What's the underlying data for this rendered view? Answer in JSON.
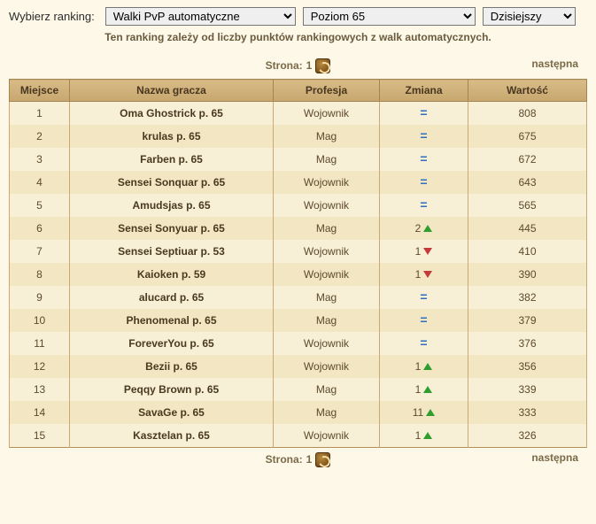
{
  "filters": {
    "label": "Wybierz ranking:",
    "ranking_selected": "Walki PvP automatyczne",
    "level_selected": "Poziom 65",
    "period_selected": "Dzisiejszy"
  },
  "subtitle": "Ten ranking zależy od liczby punktów rankingowych z walk automatycznych.",
  "pager": {
    "label": "Strona:",
    "current": "1",
    "next": "następna"
  },
  "columns": {
    "rank": "Miejsce",
    "name": "Nazwa gracza",
    "prof": "Profesja",
    "change": "Zmiana",
    "value": "Wartość"
  },
  "rows": [
    {
      "rank": "1",
      "name": "Oma Ghostrick p. 65",
      "prof": "Wojownik",
      "change_dir": "same",
      "change_n": "",
      "value": "808"
    },
    {
      "rank": "2",
      "name": "krulas p. 65",
      "prof": "Mag",
      "change_dir": "same",
      "change_n": "",
      "value": "675"
    },
    {
      "rank": "3",
      "name": "Farben p. 65",
      "prof": "Mag",
      "change_dir": "same",
      "change_n": "",
      "value": "672"
    },
    {
      "rank": "4",
      "name": "Sensei Sonquar p. 65",
      "prof": "Wojownik",
      "change_dir": "same",
      "change_n": "",
      "value": "643"
    },
    {
      "rank": "5",
      "name": "Amudsjas p. 65",
      "prof": "Wojownik",
      "change_dir": "same",
      "change_n": "",
      "value": "565"
    },
    {
      "rank": "6",
      "name": "Sensei Sonyuar p. 65",
      "prof": "Mag",
      "change_dir": "up",
      "change_n": "2",
      "value": "445"
    },
    {
      "rank": "7",
      "name": "Sensei Septiuar p. 53",
      "prof": "Wojownik",
      "change_dir": "down",
      "change_n": "1",
      "value": "410"
    },
    {
      "rank": "8",
      "name": "Kaioken p. 59",
      "prof": "Wojownik",
      "change_dir": "down",
      "change_n": "1",
      "value": "390"
    },
    {
      "rank": "9",
      "name": "alucard p. 65",
      "prof": "Mag",
      "change_dir": "same",
      "change_n": "",
      "value": "382"
    },
    {
      "rank": "10",
      "name": "Phenomenal p. 65",
      "prof": "Mag",
      "change_dir": "same",
      "change_n": "",
      "value": "379"
    },
    {
      "rank": "11",
      "name": "ForeverYou p. 65",
      "prof": "Wojownik",
      "change_dir": "same",
      "change_n": "",
      "value": "376"
    },
    {
      "rank": "12",
      "name": "Bezii p. 65",
      "prof": "Wojownik",
      "change_dir": "up",
      "change_n": "1",
      "value": "356"
    },
    {
      "rank": "13",
      "name": "Peqqy Brown p. 65",
      "prof": "Mag",
      "change_dir": "up",
      "change_n": "1",
      "value": "339"
    },
    {
      "rank": "14",
      "name": "SavaGe p. 65",
      "prof": "Mag",
      "change_dir": "up",
      "change_n": "11",
      "value": "333"
    },
    {
      "rank": "15",
      "name": "Kasztelan p. 65",
      "prof": "Wojownik",
      "change_dir": "up",
      "change_n": "1",
      "value": "326"
    }
  ]
}
